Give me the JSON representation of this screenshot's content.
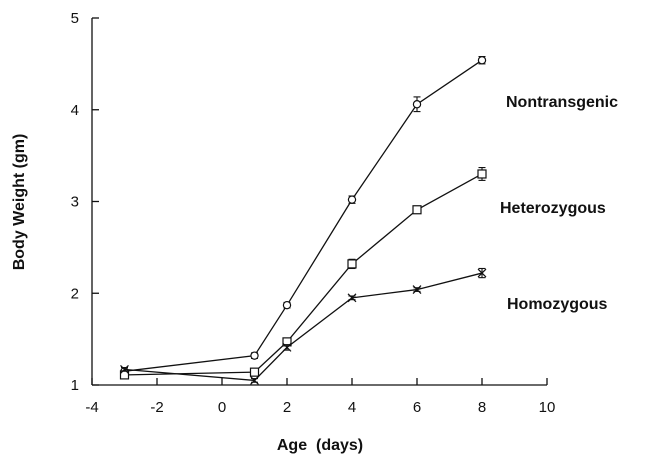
{
  "chart_data": {
    "type": "line",
    "xlabel": "Age  (days)",
    "ylabel": "Body Weight (gm)",
    "xlim": [
      -4,
      10
    ],
    "ylim": [
      1,
      5
    ],
    "xticks": [
      "-4",
      "-2",
      "0",
      "2",
      "4",
      "6",
      "8",
      "10"
    ],
    "yticks": [
      "1",
      "2",
      "3",
      "4",
      "5"
    ],
    "grid": false,
    "series": [
      {
        "name": "Nontransgenic",
        "marker": "circle",
        "x": [
          -3,
          1,
          2,
          4,
          6,
          8
        ],
        "y": [
          1.15,
          1.32,
          1.87,
          3.02,
          4.06,
          4.54
        ],
        "err": [
          0.02,
          0.03,
          0.03,
          0.04,
          0.08,
          0.04
        ]
      },
      {
        "name": "Heterozygous",
        "marker": "square",
        "x": [
          -3,
          1,
          2,
          4,
          6,
          8
        ],
        "y": [
          1.11,
          1.14,
          1.47,
          2.32,
          2.91,
          3.3
        ],
        "err": [
          0.02,
          0.02,
          0.03,
          0.05,
          0.03,
          0.07
        ]
      },
      {
        "name": "Homozygous",
        "marker": "x",
        "x": [
          -3,
          1,
          2,
          4,
          6,
          8
        ],
        "y": [
          1.17,
          1.05,
          1.41,
          1.95,
          2.04,
          2.22
        ],
        "err": [
          0.02,
          0.02,
          0.03,
          0.02,
          0.02,
          0.05
        ]
      }
    ]
  }
}
